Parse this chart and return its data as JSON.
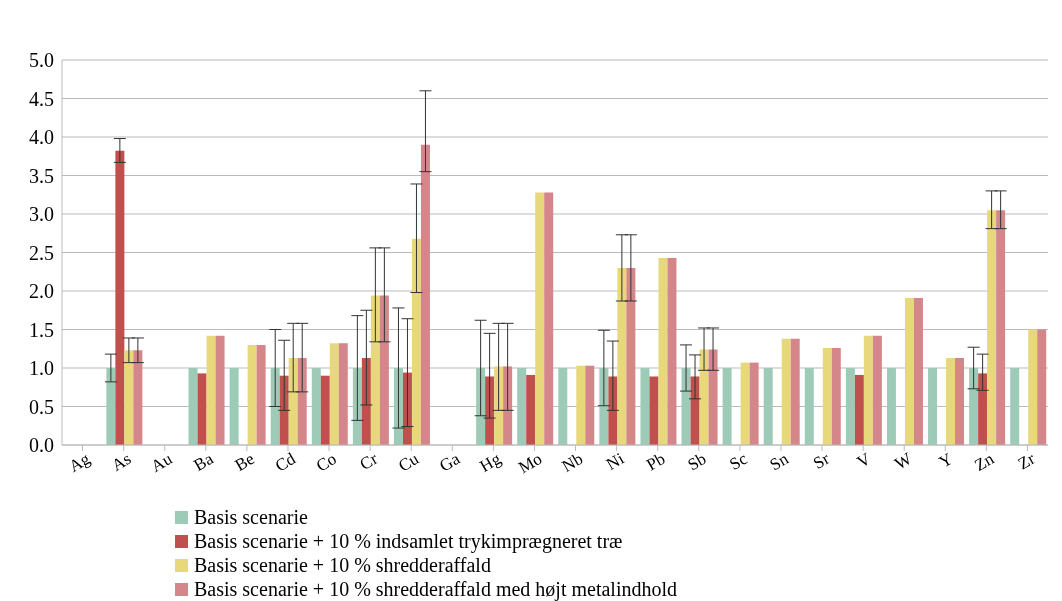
{
  "chart_data": {
    "type": "bar",
    "categories": [
      "Ag",
      "As",
      "Au",
      "Ba",
      "Be",
      "Cd",
      "Co",
      "Cr",
      "Cu",
      "Ga",
      "Hg",
      "Mo",
      "Nb",
      "Ni",
      "Pb",
      "Sb",
      "Sc",
      "Sn",
      "Sr",
      "V",
      "W",
      "Y",
      "Zn",
      "Zr"
    ],
    "series": [
      {
        "name": "Basis scenarie",
        "color": "#9dcbb8",
        "values": [
          null,
          1,
          null,
          1,
          1,
          1,
          1,
          1,
          1,
          null,
          1,
          1,
          1,
          1,
          1,
          1,
          1,
          1,
          1,
          1,
          1,
          1,
          1,
          1
        ],
        "errors": [
          null,
          0.18,
          null,
          null,
          null,
          0.5,
          null,
          0.68,
          0.78,
          null,
          0.62,
          null,
          null,
          0.49,
          null,
          0.3,
          null,
          null,
          null,
          null,
          null,
          null,
          0.27,
          null
        ]
      },
      {
        "name": "Basis scenarie + 10 % indsamlet trykimprægneret træ",
        "color": "#c0504d",
        "values": [
          null,
          3.82,
          null,
          0.93,
          null,
          0.9,
          0.9,
          1.13,
          0.94,
          null,
          0.89,
          0.91,
          null,
          0.89,
          0.89,
          0.89,
          null,
          null,
          null,
          0.91,
          null,
          null,
          0.93,
          null
        ],
        "errors": [
          null,
          [
            3.67,
            3.98
          ],
          null,
          null,
          null,
          [
            0.45,
            1.36
          ],
          null,
          [
            0.52,
            1.75
          ],
          [
            0.24,
            1.64
          ],
          null,
          [
            0.35,
            1.45
          ],
          null,
          null,
          [
            0.45,
            1.35
          ],
          null,
          [
            0.6,
            1.17
          ],
          null,
          null,
          null,
          null,
          null,
          null,
          [
            0.71,
            1.18
          ],
          null
        ]
      },
      {
        "name": "Basis scenarie + 10 % shredderaffald",
        "color": "#e8d87c",
        "values": [
          null,
          1.23,
          null,
          1.42,
          1.3,
          1.13,
          1.32,
          1.94,
          2.68,
          null,
          1.02,
          3.28,
          1.03,
          2.3,
          2.43,
          1.24,
          1.07,
          1.38,
          1.26,
          1.42,
          1.91,
          1.13,
          3.05,
          1.5
        ],
        "errors": [
          null,
          [
            1.07,
            1.39
          ],
          null,
          null,
          null,
          [
            0.69,
            1.58
          ],
          null,
          [
            1.34,
            2.56
          ],
          [
            1.98,
            3.39
          ],
          null,
          [
            0.45,
            1.58
          ],
          null,
          null,
          [
            1.87,
            2.73
          ],
          null,
          [
            0.97,
            1.52
          ],
          null,
          null,
          null,
          null,
          null,
          null,
          [
            2.81,
            3.3
          ],
          null
        ]
      },
      {
        "name": "Basis scenarie + 10 % shredderaffald med højt metalindhold",
        "color": "#d4868a",
        "values": [
          null,
          1.23,
          null,
          1.42,
          1.3,
          1.13,
          1.32,
          1.94,
          3.9,
          null,
          1.02,
          3.28,
          1.03,
          2.3,
          2.43,
          1.24,
          1.07,
          1.38,
          1.26,
          1.42,
          1.91,
          1.13,
          3.05,
          1.5
        ],
        "errors": [
          null,
          [
            1.07,
            1.39
          ],
          null,
          null,
          null,
          [
            0.69,
            1.58
          ],
          null,
          [
            1.34,
            2.56
          ],
          [
            3.55,
            4.6
          ],
          null,
          [
            0.45,
            1.58
          ],
          null,
          null,
          [
            1.87,
            2.73
          ],
          null,
          [
            0.97,
            1.52
          ],
          null,
          null,
          null,
          null,
          null,
          null,
          [
            2.81,
            3.3
          ],
          null
        ]
      }
    ],
    "ylim": [
      0,
      5
    ],
    "yticks": [
      {
        "value": 0,
        "label": "0.0"
      },
      {
        "value": 0.5,
        "label": "0.5"
      },
      {
        "value": 1,
        "label": "1.0"
      },
      {
        "value": 1.5,
        "label": "1.5"
      },
      {
        "value": 2,
        "label": "2.0"
      },
      {
        "value": 2.5,
        "label": "2.5"
      },
      {
        "value": 3,
        "label": "3.0"
      },
      {
        "value": 3.5,
        "label": "3.5"
      },
      {
        "value": 4,
        "label": "4.0"
      },
      {
        "value": 4.5,
        "label": "4.5"
      },
      {
        "value": 5,
        "label": "5.0"
      }
    ],
    "grid": "y",
    "legend": "bottom"
  }
}
